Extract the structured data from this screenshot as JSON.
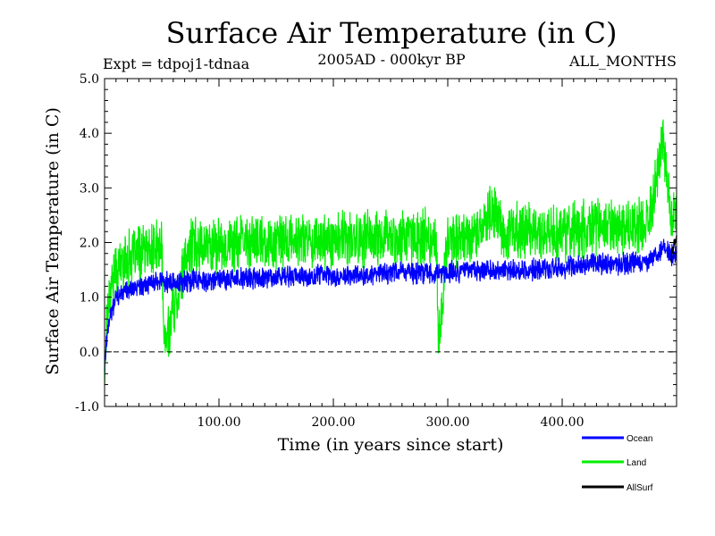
{
  "chart_data": {
    "type": "line",
    "title": "Surface Air Temperature (in C)",
    "subtitle": "2005AD - 000kyr BP",
    "experiment_label": "Expt = tdpoj1-tdnaa",
    "months_label": "ALL_MONTHS",
    "xlabel": "Time (in years since start)",
    "ylabel": "Surface Air Temperature (in C)",
    "xlim": [
      0,
      500
    ],
    "ylim": [
      -1.0,
      5.0
    ],
    "x_ticks": [
      100,
      200,
      300,
      400
    ],
    "x_tick_labels": [
      "100.00",
      "200.00",
      "300.00",
      "400.00"
    ],
    "y_ticks": [
      -1.0,
      0.0,
      1.0,
      2.0,
      3.0,
      4.0,
      5.0
    ],
    "y_tick_labels": [
      "-1.0",
      "0.0",
      "1.0",
      "2.0",
      "3.0",
      "4.0",
      "5.0"
    ],
    "reference_line": {
      "y": 0.0,
      "style": "dashed"
    },
    "legend": {
      "placement": "bottom-right",
      "entries": [
        {
          "name": "Ocean",
          "color": "#0000ff"
        },
        {
          "name": "Land",
          "color": "#00ee00"
        },
        {
          "name": "AllSurf",
          "color": "#000000"
        }
      ]
    },
    "series": [
      {
        "name": "Land",
        "color": "#00ee00",
        "noise_amplitude": 0.42,
        "x": [
          0,
          2,
          5,
          10,
          20,
          30,
          50,
          52,
          75,
          100,
          125,
          150,
          175,
          200,
          225,
          250,
          275,
          290,
          292,
          300,
          325,
          340,
          350,
          375,
          400,
          425,
          450,
          475,
          488,
          495,
          500
        ],
        "y": [
          -0.5,
          0.7,
          1.2,
          1.5,
          1.7,
          1.8,
          1.9,
          0.1,
          1.95,
          1.95,
          2.0,
          2.0,
          2.05,
          2.05,
          2.05,
          2.1,
          2.1,
          2.1,
          0.05,
          2.1,
          2.15,
          2.6,
          2.15,
          2.2,
          2.2,
          2.25,
          2.3,
          2.35,
          3.9,
          2.5,
          2.4
        ]
      },
      {
        "name": "Ocean",
        "color": "#0000ff",
        "noise_amplitude": 0.16,
        "x": [
          0,
          2,
          5,
          10,
          20,
          30,
          50,
          75,
          100,
          125,
          150,
          175,
          200,
          225,
          250,
          275,
          300,
          325,
          350,
          375,
          400,
          425,
          450,
          475,
          490,
          495,
          500
        ],
        "y": [
          -0.3,
          0.3,
          0.7,
          0.95,
          1.1,
          1.2,
          1.25,
          1.3,
          1.3,
          1.35,
          1.35,
          1.4,
          1.4,
          1.4,
          1.45,
          1.45,
          1.45,
          1.5,
          1.5,
          1.5,
          1.55,
          1.6,
          1.6,
          1.65,
          1.95,
          1.75,
          1.8
        ]
      },
      {
        "name": "AllSurf",
        "color": "#000000",
        "noise_amplitude": 0.1,
        "x": [
          495,
          496,
          497,
          498,
          499,
          500
        ],
        "y": [
          1.7,
          1.8,
          1.9,
          2.0,
          2.0,
          2.05
        ]
      }
    ]
  }
}
